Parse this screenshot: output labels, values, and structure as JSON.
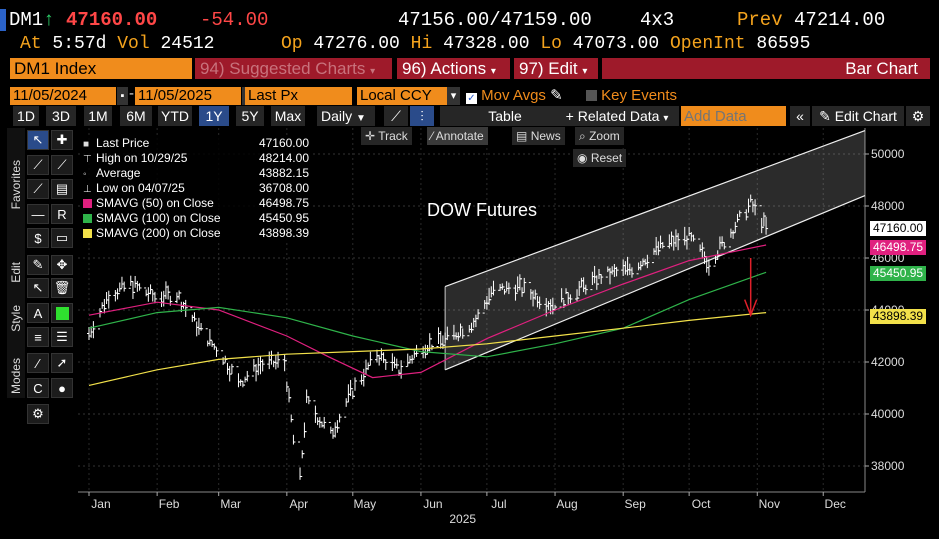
{
  "quote": {
    "ticker": "DM1",
    "arrow": "↑",
    "last": "47160.00",
    "change": "-54.00",
    "bid_ask": "47156.00/47159.00",
    "size": "4x3",
    "prev_label": "Prev",
    "prev": "47214.00",
    "at_label": "At",
    "time": "5:57d",
    "vol_label": "Vol",
    "vol": "24512",
    "op_label": "Op",
    "open": "47276.00",
    "hi_label": "Hi",
    "high": "47328.00",
    "lo_label": "Lo",
    "low": "47073.00",
    "oi_label": "OpenInt",
    "open_int": "86595"
  },
  "menubar": {
    "security": "DM1 Index",
    "suggested": "94) Suggested Charts",
    "actions": "96) Actions",
    "edit": "97) Edit",
    "chart_type": "Bar Chart"
  },
  "range": {
    "start": "11/05/2024",
    "end": "11/05/2025",
    "field": "Last Px",
    "currency": "Local CCY",
    "mov_avgs": "Mov Avgs",
    "key_events": "Key Events"
  },
  "toolbar": {
    "periods": [
      "1D",
      "3D",
      "1M",
      "6M",
      "YTD",
      "1Y",
      "5Y",
      "Max"
    ],
    "selected_period": "1Y",
    "frequency": "Daily",
    "table": "Table",
    "related": "Related Data",
    "add_data_placeholder": "Add Data",
    "edit_chart": "Edit Chart"
  },
  "side_tabs": [
    "Favorites",
    "Edit",
    "Style",
    "Modes"
  ],
  "chart_tools": {
    "track": "Track",
    "annotate": "Annotate",
    "news": "News",
    "zoom": "Zoom",
    "reset": "Reset"
  },
  "legend": [
    {
      "label": "Last Price",
      "value": "47160.00",
      "color": "#ffffff"
    },
    {
      "label": "High on 10/29/25",
      "value": "48214.00",
      "color": "#ffffff"
    },
    {
      "label": "Average",
      "value": "43882.15",
      "color": "#ffffff"
    },
    {
      "label": "Low on 04/07/25",
      "value": "36708.00",
      "color": "#ffffff"
    },
    {
      "label": "SMAVG (50)  on Close",
      "value": "46498.75",
      "color": "#e0207f"
    },
    {
      "label": "SMAVG (100)  on Close",
      "value": "45450.95",
      "color": "#2fb34a"
    },
    {
      "label": "SMAVG (200)  on Close",
      "value": "43898.39",
      "color": "#f2e14a"
    }
  ],
  "annotation": "DOW Futures",
  "price_labels": {
    "last": "47160.00",
    "sma50": "46498.75",
    "sma100": "45450.95",
    "sma200": "43898.39"
  },
  "colors": {
    "bloomberg_amber": "#f08c1c",
    "menu_red": "#9e1a2a",
    "sma50": "#e0207f",
    "sma100": "#2fb34a",
    "sma200": "#f2e14a",
    "down_arrow": "#e0202a"
  },
  "chart_data": {
    "type": "bar",
    "title": "",
    "xlabel": "2025",
    "ylabel": "",
    "ylim": [
      37000,
      51000
    ],
    "y_ticks": [
      "50000",
      "48000",
      "46000",
      "44000",
      "42000",
      "40000",
      "38000"
    ],
    "x_ticks": [
      "Jan",
      "Feb",
      "Mar",
      "Apr",
      "May",
      "Jun",
      "Jul",
      "Aug",
      "Sep",
      "Oct",
      "Nov",
      "Dec"
    ],
    "price_series": {
      "name": "Last Price",
      "x": [
        "2025-01-01",
        "2025-01-10",
        "2025-01-20",
        "2025-01-31",
        "2025-02-10",
        "2025-02-20",
        "2025-03-03",
        "2025-03-10",
        "2025-03-20",
        "2025-03-31",
        "2025-04-04",
        "2025-04-07",
        "2025-04-10",
        "2025-04-21",
        "2025-04-30",
        "2025-05-12",
        "2025-05-22",
        "2025-06-02",
        "2025-06-13",
        "2025-06-26",
        "2025-07-03",
        "2025-07-15",
        "2025-07-31",
        "2025-08-12",
        "2025-08-22",
        "2025-09-05",
        "2025-09-19",
        "2025-10-01",
        "2025-10-10",
        "2025-10-20",
        "2025-10-29",
        "2025-11-05"
      ],
      "values": [
        43100,
        44600,
        45000,
        44500,
        44600,
        43300,
        42200,
        41200,
        41900,
        42000,
        39000,
        37500,
        40500,
        39200,
        40800,
        42300,
        41700,
        42600,
        42900,
        43600,
        44700,
        44900,
        44200,
        44800,
        45300,
        45600,
        46500,
        46800,
        45800,
        47000,
        48100,
        47160
      ]
    },
    "series": [
      {
        "name": "SMAVG (50)",
        "x": [
          "2025-01-01",
          "2025-02-01",
          "2025-03-01",
          "2025-04-01",
          "2025-04-20",
          "2025-05-10",
          "2025-06-01",
          "2025-07-01",
          "2025-08-01",
          "2025-09-01",
          "2025-10-01",
          "2025-11-05"
        ],
        "values": [
          43800,
          44300,
          44000,
          43000,
          42200,
          41400,
          41600,
          42900,
          44000,
          45000,
          45900,
          46500
        ]
      },
      {
        "name": "SMAVG (100)",
        "x": [
          "2025-01-01",
          "2025-02-01",
          "2025-03-01",
          "2025-04-01",
          "2025-05-01",
          "2025-06-01",
          "2025-07-01",
          "2025-08-01",
          "2025-09-01",
          "2025-10-01",
          "2025-11-05"
        ],
        "values": [
          43300,
          43900,
          44100,
          43700,
          43000,
          42400,
          42200,
          42700,
          43300,
          44400,
          45450
        ]
      },
      {
        "name": "SMAVG (200)",
        "x": [
          "2025-01-01",
          "2025-02-01",
          "2025-03-01",
          "2025-04-01",
          "2025-05-01",
          "2025-06-01",
          "2025-07-01",
          "2025-08-01",
          "2025-09-01",
          "2025-10-01",
          "2025-11-05"
        ],
        "values": [
          41100,
          41700,
          42100,
          42300,
          42400,
          42500,
          42700,
          43000,
          43300,
          43600,
          43900
        ]
      }
    ]
  }
}
